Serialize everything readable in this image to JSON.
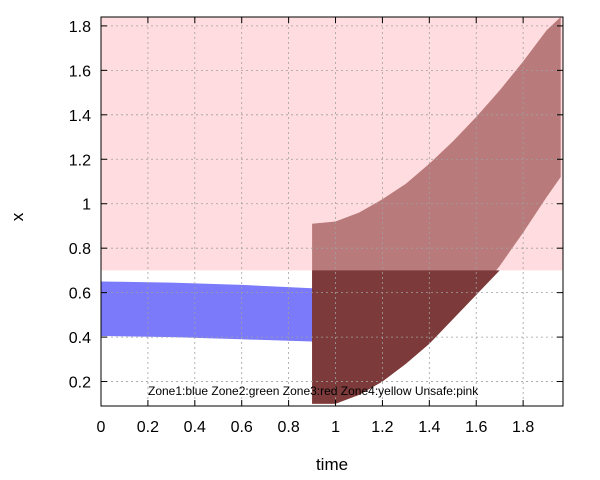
{
  "chart_data": {
    "type": "area",
    "title": "",
    "xlabel": "time",
    "ylabel": "x",
    "xlim": [
      0,
      1.97
    ],
    "ylim": [
      0.09,
      1.84
    ],
    "grid": true,
    "x_ticks": [
      "0",
      "0.2",
      "0.4",
      "0.6",
      "0.8",
      "1",
      "1.2",
      "1.4",
      "1.6",
      "1.8"
    ],
    "y_ticks": [
      "0.2",
      "0.4",
      "0.6",
      "0.8",
      "1",
      "1.2",
      "1.4",
      "1.6",
      "1.8"
    ],
    "annotation": "Zone1:blue Zone2:green Zone3:red Zone4:yellow Unsafe:pink",
    "colors": {
      "unsafe": "#ffdcdf",
      "zone1": "#7a7afa",
      "zone3": "#b87a7a",
      "zone3_over_zone1": "#64234b",
      "zone3_lower": "#7c3a3a",
      "grid": "#a0a0a0"
    },
    "regions": [
      {
        "name": "Unsafe",
        "color": "unsafe",
        "points": [
          [
            0,
            0.7
          ],
          [
            1.97,
            0.7
          ],
          [
            1.97,
            1.84
          ],
          [
            0,
            1.84
          ]
        ]
      },
      {
        "name": "Zone3",
        "color": "zone3",
        "points": [
          [
            0.9,
            0.91
          ],
          [
            1.0,
            0.92
          ],
          [
            1.1,
            0.96
          ],
          [
            1.2,
            1.02
          ],
          [
            1.3,
            1.09
          ],
          [
            1.4,
            1.18
          ],
          [
            1.5,
            1.28
          ],
          [
            1.6,
            1.39
          ],
          [
            1.7,
            1.51
          ],
          [
            1.8,
            1.64
          ],
          [
            1.9,
            1.78
          ],
          [
            1.96,
            1.84
          ],
          [
            1.96,
            1.12
          ],
          [
            1.9,
            1.03
          ],
          [
            1.8,
            0.87
          ],
          [
            1.7,
            0.72
          ],
          [
            1.6,
            0.59
          ],
          [
            1.5,
            0.48
          ],
          [
            1.4,
            0.37
          ],
          [
            1.3,
            0.28
          ],
          [
            1.2,
            0.2
          ],
          [
            1.1,
            0.14
          ],
          [
            1.0,
            0.1
          ],
          [
            0.9,
            0.1
          ]
        ]
      },
      {
        "name": "Zone1",
        "color": "zone1",
        "points": [
          [
            0,
            0.65
          ],
          [
            0.3,
            0.645
          ],
          [
            0.6,
            0.635
          ],
          [
            0.9,
            0.62
          ],
          [
            1.25,
            0.61
          ],
          [
            1.25,
            0.37
          ],
          [
            0.9,
            0.38
          ],
          [
            0.6,
            0.39
          ],
          [
            0.3,
            0.4
          ],
          [
            0,
            0.405
          ]
        ]
      },
      {
        "name": "Zone3 ∩ Zone1",
        "color": "zone3_over_zone1",
        "points": [
          [
            0.9,
            0.62
          ],
          [
            1.25,
            0.61
          ],
          [
            1.25,
            0.37
          ],
          [
            0.9,
            0.38
          ]
        ]
      },
      {
        "name": "Zone3 below unsafe boundary",
        "color": "zone3_lower",
        "points": [
          [
            0.9,
            0.7
          ],
          [
            1.7,
            0.7
          ],
          [
            1.6,
            0.59
          ],
          [
            1.5,
            0.48
          ],
          [
            1.4,
            0.37
          ],
          [
            1.3,
            0.28
          ],
          [
            1.2,
            0.2
          ],
          [
            1.1,
            0.14
          ],
          [
            1.0,
            0.1
          ],
          [
            0.9,
            0.1
          ]
        ]
      }
    ]
  }
}
